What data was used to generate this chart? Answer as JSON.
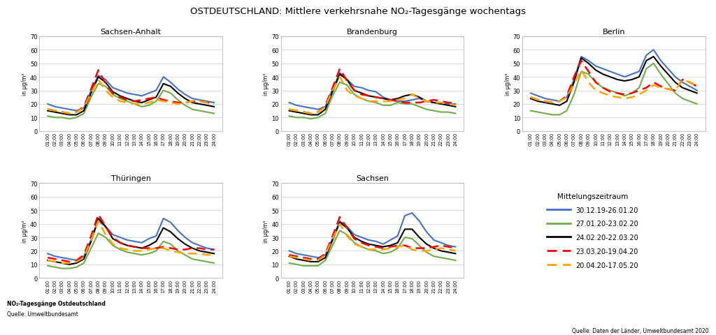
{
  "title": "OSTDEUTSCHLAND: Mittlere verkehrsnahe NO₂-Tagesgänge wochentags",
  "subplots": [
    "Sachsen-Anhalt",
    "Brandenburg",
    "Berlin",
    "Thüringen",
    "Sachsen"
  ],
  "x_labels": [
    "01:00",
    "02:00",
    "03:00",
    "04:00",
    "05:00",
    "06:00",
    "07:00",
    "08:00",
    "09:00",
    "10:00",
    "11:00",
    "12:00",
    "13:00",
    "14:00",
    "15:00",
    "16:00",
    "17:00",
    "18:00",
    "19:00",
    "20:00",
    "21:00",
    "22:00",
    "23:00",
    "24:00"
  ],
  "ylabel": "in µg/m³",
  "ylim": [
    0,
    70
  ],
  "yticks": [
    0,
    10,
    20,
    30,
    40,
    50,
    60,
    70
  ],
  "series": [
    {
      "label": "30.12.19-26.01.20",
      "color": "#4472C4",
      "linestyle": "solid",
      "linewidth": 1.5
    },
    {
      "label": "27.01.20-23.02.20",
      "color": "#70AD47",
      "linestyle": "solid",
      "linewidth": 1.5
    },
    {
      "label": "24.02.20-22.03.20",
      "color": "#000000",
      "linestyle": "solid",
      "linewidth": 1.5
    },
    {
      "label": "23.03.20-19.04.20",
      "color": "#FF0000",
      "linestyle": "dashed",
      "linewidth": 1.8
    },
    {
      "label": "20.04.20-17.05.20",
      "color": "#FFA500",
      "linestyle": "dashed",
      "linewidth": 1.8
    }
  ],
  "data": {
    "Sachsen-Anhalt": [
      [
        20,
        18,
        17,
        16,
        15,
        17,
        30,
        41,
        38,
        32,
        30,
        28,
        27,
        26,
        28,
        30,
        40,
        36,
        31,
        27,
        24,
        23,
        22,
        21
      ],
      [
        11,
        10,
        10,
        9,
        10,
        13,
        25,
        35,
        33,
        27,
        24,
        22,
        20,
        18,
        19,
        22,
        30,
        28,
        23,
        19,
        16,
        15,
        14,
        13
      ],
      [
        15,
        14,
        13,
        12,
        12,
        15,
        28,
        40,
        36,
        29,
        26,
        24,
        22,
        21,
        23,
        25,
        35,
        33,
        28,
        24,
        21,
        20,
        19,
        18
      ],
      [
        16,
        15,
        14,
        13,
        14,
        18,
        31,
        45,
        35,
        28,
        25,
        23,
        22,
        23,
        24,
        25,
        23,
        22,
        21,
        21,
        22,
        22,
        21,
        21
      ],
      [
        16,
        15,
        14,
        13,
        14,
        17,
        28,
        38,
        30,
        25,
        22,
        21,
        20,
        20,
        21,
        23,
        22,
        21,
        20,
        21,
        22,
        22,
        21,
        20
      ]
    ],
    "Brandenburg": [
      [
        21,
        19,
        18,
        17,
        16,
        18,
        31,
        43,
        38,
        33,
        32,
        30,
        29,
        25,
        23,
        22,
        22,
        23,
        24,
        22,
        21,
        21,
        20,
        20
      ],
      [
        11,
        10,
        10,
        9,
        10,
        13,
        26,
        36,
        34,
        27,
        24,
        22,
        21,
        19,
        19,
        21,
        20,
        20,
        18,
        16,
        15,
        14,
        14,
        13
      ],
      [
        15,
        14,
        13,
        12,
        12,
        16,
        29,
        42,
        38,
        30,
        28,
        26,
        25,
        24,
        23,
        24,
        26,
        27,
        25,
        22,
        21,
        20,
        19,
        18
      ],
      [
        16,
        15,
        14,
        13,
        14,
        19,
        32,
        46,
        37,
        30,
        27,
        26,
        25,
        24,
        23,
        22,
        21,
        21,
        21,
        22,
        23,
        22,
        21,
        21
      ],
      [
        16,
        15,
        14,
        13,
        14,
        18,
        30,
        40,
        30,
        26,
        24,
        22,
        22,
        22,
        22,
        23,
        24,
        27,
        24,
        22,
        21,
        21,
        20,
        19
      ]
    ],
    "Berlin": [
      [
        28,
        26,
        24,
        23,
        22,
        25,
        38,
        55,
        52,
        48,
        46,
        44,
        42,
        40,
        42,
        44,
        56,
        60,
        52,
        46,
        40,
        36,
        33,
        30
      ],
      [
        15,
        14,
        13,
        12,
        12,
        15,
        27,
        44,
        42,
        36,
        32,
        30,
        28,
        26,
        28,
        32,
        46,
        50,
        42,
        35,
        28,
        24,
        22,
        20
      ],
      [
        24,
        22,
        21,
        20,
        19,
        22,
        36,
        54,
        50,
        45,
        42,
        40,
        38,
        37,
        38,
        40,
        52,
        55,
        48,
        42,
        36,
        32,
        30,
        28
      ],
      [
        25,
        23,
        22,
        21,
        22,
        26,
        40,
        52,
        44,
        36,
        32,
        29,
        28,
        27,
        28,
        30,
        32,
        36,
        33,
        31,
        30,
        38,
        36,
        33
      ],
      [
        25,
        23,
        22,
        21,
        22,
        25,
        35,
        45,
        36,
        30,
        28,
        26,
        25,
        24,
        25,
        27,
        30,
        34,
        32,
        31,
        30,
        38,
        36,
        33
      ]
    ],
    "Thüringen": [
      [
        18,
        16,
        15,
        14,
        13,
        16,
        28,
        42,
        38,
        32,
        30,
        28,
        27,
        26,
        29,
        31,
        44,
        41,
        35,
        30,
        26,
        24,
        22,
        21
      ],
      [
        9,
        8,
        7,
        7,
        8,
        11,
        22,
        33,
        30,
        24,
        21,
        19,
        18,
        17,
        18,
        20,
        27,
        25,
        20,
        17,
        14,
        13,
        12,
        11
      ],
      [
        13,
        12,
        11,
        10,
        11,
        14,
        27,
        44,
        38,
        29,
        26,
        24,
        23,
        22,
        24,
        27,
        37,
        34,
        29,
        25,
        22,
        20,
        19,
        18
      ],
      [
        15,
        14,
        13,
        12,
        13,
        17,
        31,
        47,
        38,
        30,
        26,
        24,
        23,
        22,
        22,
        22,
        23,
        22,
        21,
        21,
        22,
        22,
        21,
        21
      ],
      [
        13,
        12,
        11,
        11,
        12,
        15,
        28,
        42,
        32,
        25,
        22,
        21,
        20,
        20,
        21,
        22,
        22,
        20,
        19,
        18,
        18,
        18,
        17,
        17
      ]
    ],
    "Sachsen": [
      [
        20,
        18,
        17,
        16,
        15,
        17,
        29,
        42,
        38,
        32,
        30,
        28,
        27,
        25,
        28,
        31,
        46,
        48,
        42,
        34,
        28,
        26,
        24,
        23
      ],
      [
        11,
        10,
        9,
        9,
        9,
        13,
        24,
        35,
        32,
        26,
        23,
        21,
        20,
        18,
        19,
        22,
        30,
        29,
        24,
        19,
        16,
        15,
        14,
        13
      ],
      [
        16,
        14,
        13,
        12,
        12,
        15,
        28,
        41,
        37,
        30,
        27,
        25,
        24,
        23,
        24,
        26,
        36,
        36,
        30,
        25,
        22,
        20,
        19,
        18
      ],
      [
        17,
        16,
        15,
        14,
        14,
        18,
        31,
        45,
        37,
        29,
        26,
        24,
        23,
        22,
        23,
        24,
        24,
        22,
        22,
        22,
        23,
        24,
        23,
        22
      ],
      [
        16,
        15,
        14,
        13,
        13,
        17,
        29,
        40,
        31,
        25,
        23,
        21,
        21,
        21,
        22,
        23,
        24,
        21,
        20,
        20,
        21,
        22,
        21,
        20
      ]
    ]
  },
  "legend_title": "Mittelungszeitraum",
  "footnote_left_bold": "NO₂-Tagesgänge Ostdeutschland",
  "footnote_left_normal": "Quelle: Umweltbundesamt",
  "footnote_right": "Quelle: Daten der Länder, Umweltbundesamt 2020",
  "background_color": "#FFFFFF",
  "grid_color": "#CCCCCC",
  "border_color": "#AAAAAA"
}
